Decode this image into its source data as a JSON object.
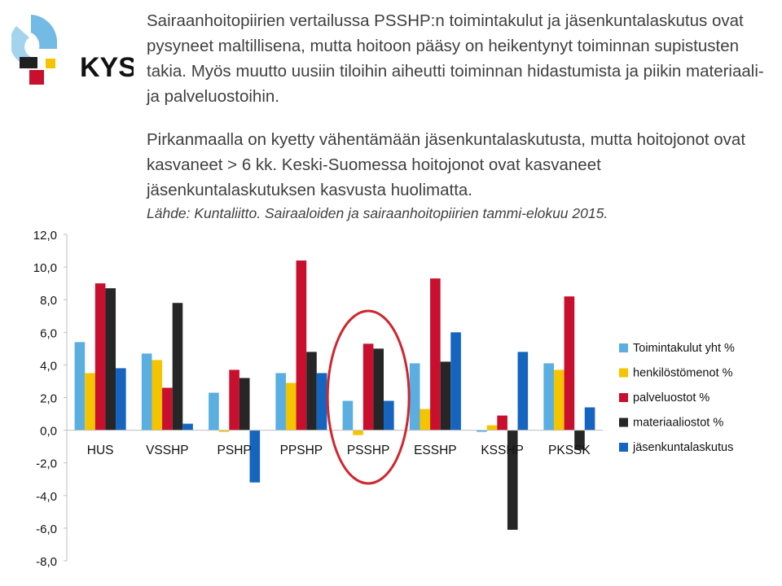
{
  "logo": {
    "name": "kys-logo-icon",
    "text": "KYS"
  },
  "slide": {
    "title": "Sairaanhoitopiirien vertailussa PSSHP:n toimintakulut ja jäsenkuntalaskutus ovat pysyneet maltillisena, mutta hoitoon pääsy on heikentynyt toiminnan supistusten takia. Myös muutto uusiin tiloihin aiheutti toiminnan hidastumista ja piikin materiaali- ja palveluostoihin.",
    "note": "Pirkanmaalla on kyetty vähentämään jäsenkuntalaskutusta, mutta hoitojonot ovat kasvaneet > 6 kk. Keski-Suomessa hoitojonot ovat kasvaneet jäsenkuntalaskutuksen kasvusta huolimatta.",
    "source": "Lähde: Kuntaliitto. Sairaaloiden ja sairaanhoitopiirien tammi-elokuu 2015."
  },
  "chart_data": {
    "type": "bar",
    "title": "",
    "xlabel": "",
    "ylabel": "",
    "ylim": [
      -8,
      12
    ],
    "yticks": [
      "12,0",
      "10,0",
      "8,0",
      "6,0",
      "4,0",
      "2,0",
      "0,0",
      "-2,0",
      "-4,0",
      "-6,0",
      "-8,0"
    ],
    "grid": false,
    "legend_position": "right",
    "categories": [
      "HUS",
      "VSSHP",
      "PSHP",
      "PPSHP",
      "PSSHP",
      "ESSHP",
      "KSSHP",
      "PKSSK"
    ],
    "highlight_category": "PSSHP",
    "highlight_color": "#d0262e",
    "series": [
      {
        "name": "Toimintakulut yht %",
        "color": "#5aaee0",
        "values": [
          5.4,
          4.7,
          2.3,
          3.5,
          1.8,
          4.1,
          -0.1,
          4.1
        ]
      },
      {
        "name": "henkilöstömenot %",
        "color": "#f5c400",
        "values": [
          3.5,
          4.3,
          -0.1,
          2.9,
          -0.3,
          1.3,
          0.3,
          3.7
        ]
      },
      {
        "name": "palveluostot %",
        "color": "#c8102e",
        "values": [
          9.0,
          2.6,
          3.7,
          10.4,
          5.3,
          9.3,
          0.9,
          8.2
        ]
      },
      {
        "name": "materiaaliostot %",
        "color": "#262626",
        "values": [
          8.7,
          7.8,
          3.2,
          4.8,
          5.0,
          4.2,
          -6.1,
          -1.2
        ]
      },
      {
        "name": "jäsenkuntalaskutus",
        "color": "#1565c0",
        "values": [
          3.8,
          0.4,
          -3.2,
          3.5,
          1.8,
          6.0,
          4.8,
          1.4
        ]
      }
    ]
  }
}
